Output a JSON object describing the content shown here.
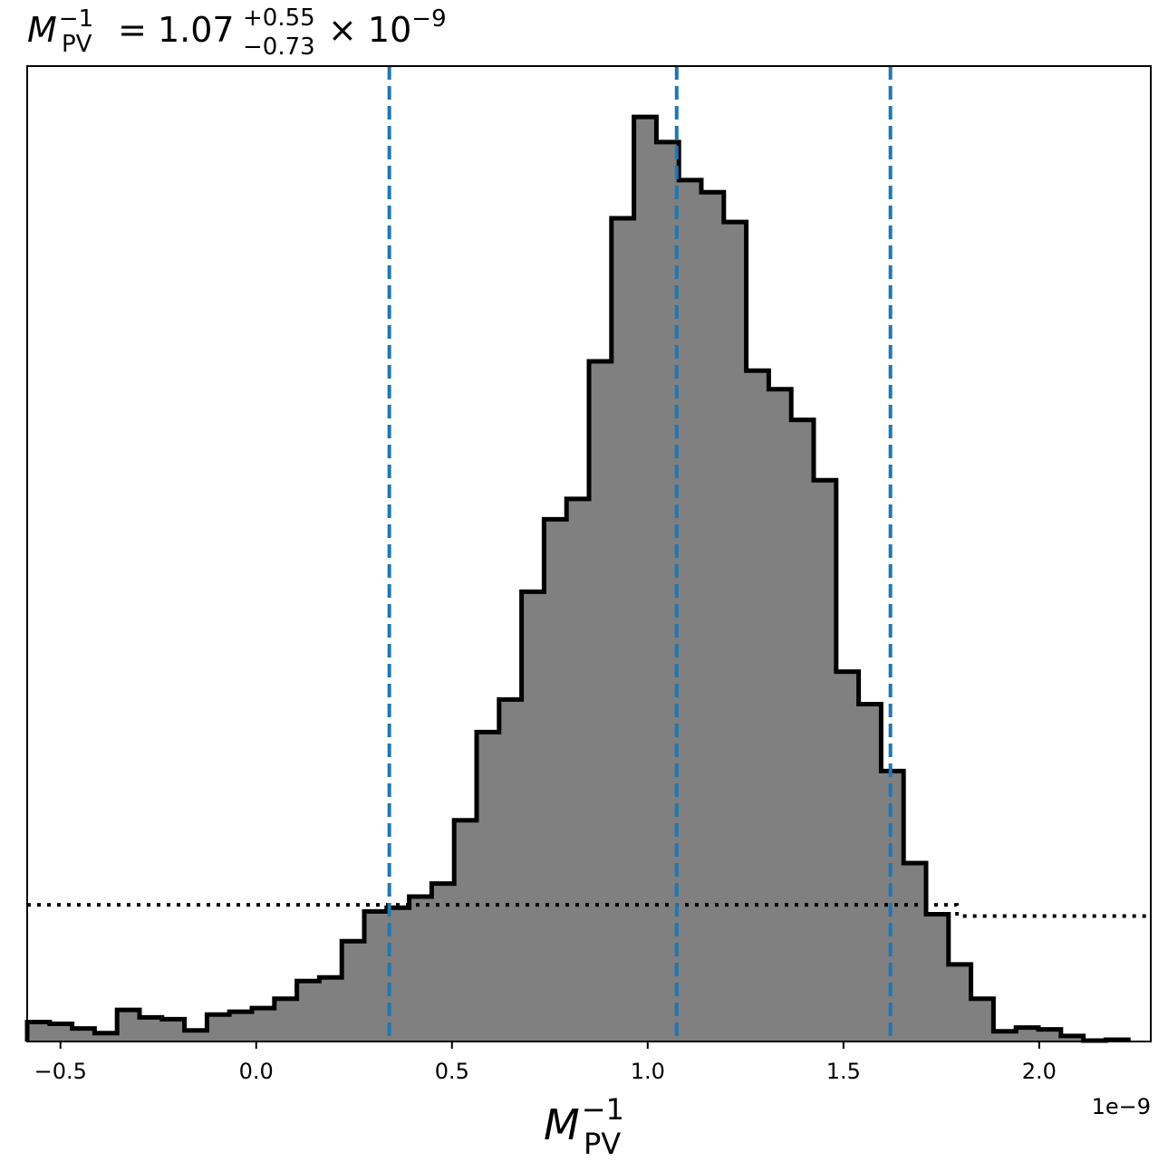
{
  "chart_data": {
    "type": "histogram",
    "title": {
      "symbol": "M",
      "subscript": "PV",
      "superscript": "−1",
      "equals": " = ",
      "value": "1.07",
      "err_plus": "+0.55",
      "err_minus": "−0.73",
      "scale": "× 10",
      "scale_exp": "−9"
    },
    "xlabel": {
      "symbol": "M",
      "subscript": "PV",
      "superscript": "−1"
    },
    "x_offset_label": "1e−9",
    "xlim": [
      -0.585,
      2.285
    ],
    "ylim": [
      0,
      1.0
    ],
    "xticks": [
      {
        "value": -0.5,
        "label": "−0.5"
      },
      {
        "value": 0.0,
        "label": "0.0"
      },
      {
        "value": 0.5,
        "label": "0.5"
      },
      {
        "value": 1.0,
        "label": "1.0"
      },
      {
        "value": 1.5,
        "label": "1.5"
      },
      {
        "value": 2.0,
        "label": "2.0"
      }
    ],
    "bin_start": -0.585,
    "bin_width": 0.0574,
    "bin_heights": [
      0.021,
      0.019,
      0.014,
      0.009,
      0.034,
      0.026,
      0.024,
      0.012,
      0.029,
      0.032,
      0.036,
      0.046,
      0.065,
      0.069,
      0.108,
      0.14,
      0.144,
      0.156,
      0.17,
      0.238,
      0.333,
      0.368,
      0.484,
      0.562,
      0.584,
      0.732,
      0.886,
      0.995,
      0.968,
      0.927,
      0.914,
      0.882,
      0.722,
      0.702,
      0.669,
      0.604,
      0.398,
      0.363,
      0.291,
      0.192,
      0.137,
      0.083,
      0.046,
      0.011,
      0.015,
      0.013,
      0.006,
      0.001,
      0.002
    ],
    "vlines": [
      0.34,
      1.074,
      1.62
    ],
    "vline_color": "#1f77b4",
    "prior_line": [
      [
        -0.585,
        0.147
      ],
      [
        1.79,
        0.147
      ],
      [
        1.79,
        0.135
      ],
      [
        2.285,
        0.135
      ]
    ],
    "fill_color": "#808080",
    "edge_color": "#000000",
    "grid": false
  }
}
